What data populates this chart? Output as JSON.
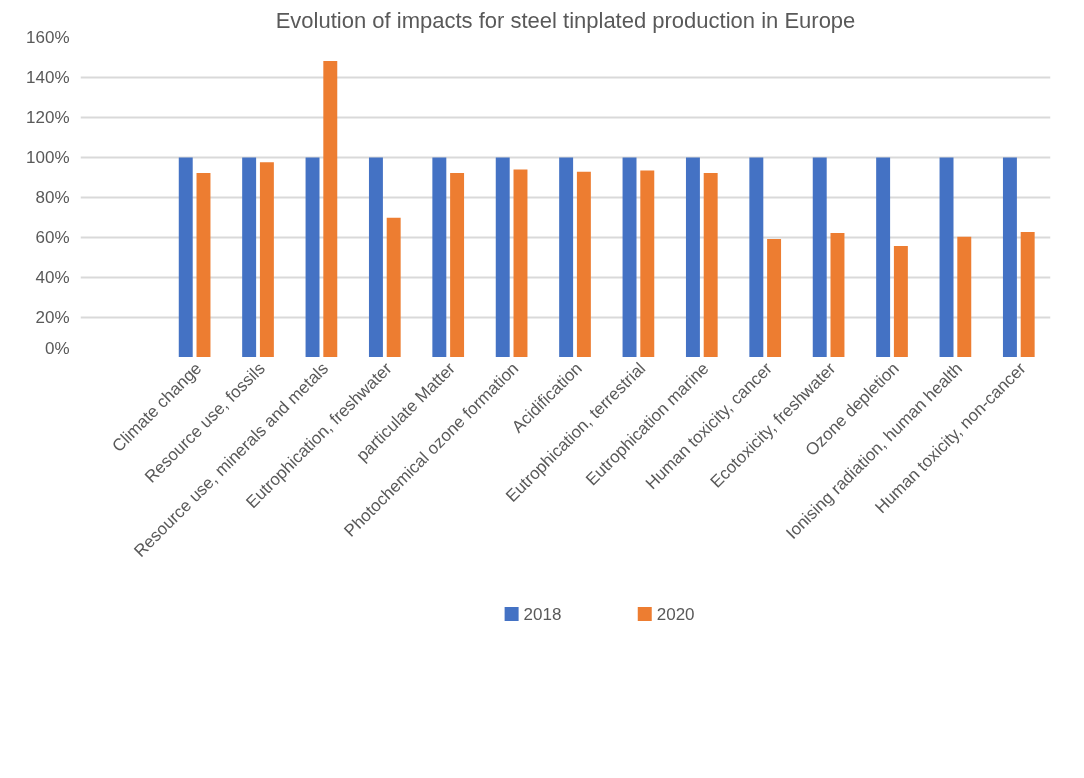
{
  "chart_data": {
    "type": "bar",
    "title": "Evolution of impacts for steel tinplated production in Europe",
    "categories": [
      "Climate change",
      "Resource use, fossils",
      "Resource use, minerals and metals",
      "Eutrophication, freshwater",
      "particulate Matter",
      "Photochemical ozone formation",
      "Acidification",
      "Eutrophication, terrestrial",
      "Eutrophication marine",
      "Human toxicity, cancer",
      "Ecotoxicity, freshwater",
      "Ozone depletion",
      "Ionising radiation, human health",
      "Human toxicity, non-cancer"
    ],
    "series": [
      {
        "name": "2018",
        "color": "#4472c4",
        "values": [
          100,
          100,
          100,
          100,
          100,
          100,
          100,
          100,
          100,
          100,
          100,
          100,
          100,
          100
        ]
      },
      {
        "name": "2020",
        "color": "#ed7d31",
        "values": [
          92.2,
          97.6,
          148.3,
          69.9,
          92.2,
          94.0,
          92.9,
          93.5,
          92.2,
          59.3,
          62.2,
          55.7,
          60.4,
          62.8
        ]
      }
    ],
    "ylim": [
      0,
      160
    ],
    "yticks": [
      {
        "value": 0,
        "label": "0%"
      },
      {
        "value": 20,
        "label": "20%"
      },
      {
        "value": 40,
        "label": "40%"
      },
      {
        "value": 60,
        "label": "60%"
      },
      {
        "value": 80,
        "label": "80%"
      },
      {
        "value": 100,
        "label": "100%"
      },
      {
        "value": 120,
        "label": "120%"
      },
      {
        "value": 140,
        "label": "140%"
      },
      {
        "value": 160,
        "label": "160%"
      }
    ],
    "grid": "y",
    "legend": "bottom"
  }
}
